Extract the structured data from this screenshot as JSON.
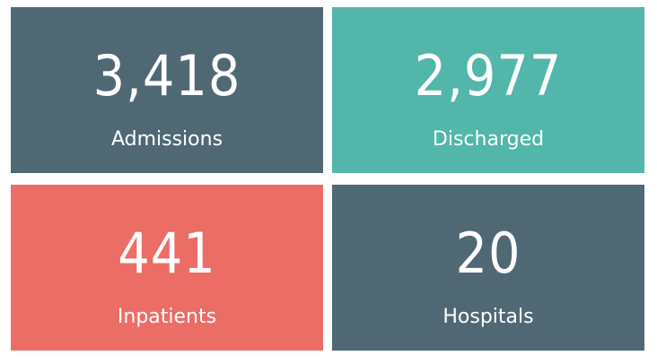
{
  "cards": [
    {
      "value": "3,418",
      "label": "Admissions"
    },
    {
      "value": "2,977",
      "label": "Discharged"
    },
    {
      "value": "441",
      "label": "Inpatients"
    },
    {
      "value": "20",
      "label": "Hospitals"
    }
  ]
}
